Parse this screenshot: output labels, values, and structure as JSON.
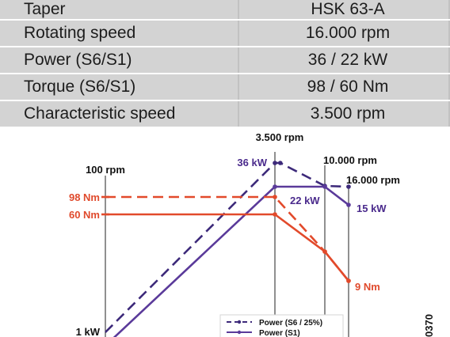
{
  "spec_table": {
    "rows": [
      {
        "label": "Taper",
        "value": "HSK 63-A"
      },
      {
        "label": "Rotating speed",
        "value": "16.000 rpm"
      },
      {
        "label": "Power (S6/S1)",
        "value": "36 / 22 kW"
      },
      {
        "label": "Torque (S6/S1)",
        "value": "98 / 60 Nm"
      },
      {
        "label": "Characteristic speed",
        "value": "3.500 rpm"
      }
    ]
  },
  "chart_data": {
    "type": "line",
    "x_unit": "rpm",
    "x_markers": [
      "100 rpm",
      "3.500 rpm",
      "10.000 rpm",
      "16.000 rpm"
    ],
    "series": [
      {
        "name": "Power (S6 / 25%)",
        "quantity": "power",
        "unit": "kW",
        "style": "dashed",
        "color": "#3d2a7a",
        "points": [
          [
            100,
            1
          ],
          [
            3500,
            36
          ],
          [
            4200,
            36
          ],
          [
            10000,
            31
          ],
          [
            16000,
            22
          ]
        ]
      },
      {
        "name": "Power (S1)",
        "quantity": "power",
        "unit": "kW",
        "style": "solid",
        "color": "#5a3a9a",
        "points": [
          [
            100,
            0
          ],
          [
            3500,
            22
          ],
          [
            10000,
            22
          ],
          [
            16000,
            15
          ]
        ]
      },
      {
        "name": "",
        "quantity": "torque",
        "unit": "Nm",
        "style": "dashed",
        "color": "#e24a2b",
        "points": [
          [
            100,
            98
          ],
          [
            3500,
            98
          ],
          [
            10000,
            31
          ],
          [
            16000,
            9
          ]
        ]
      },
      {
        "name": "",
        "quantity": "torque",
        "unit": "Nm",
        "style": "solid",
        "color": "#e24a2b",
        "points": [
          [
            100,
            60
          ],
          [
            3500,
            60
          ],
          [
            10000,
            31
          ],
          [
            16000,
            9
          ]
        ]
      }
    ],
    "annotations": {
      "power_left": "1 kW",
      "power_peak": "36 kW",
      "power_mid": "22 kW",
      "power_end": "15 kW",
      "torque_high": "98 Nm",
      "torque_low": "60 Nm",
      "torque_end": "9 Nm"
    },
    "code": "0370",
    "legend_placement": "bottom-center"
  }
}
